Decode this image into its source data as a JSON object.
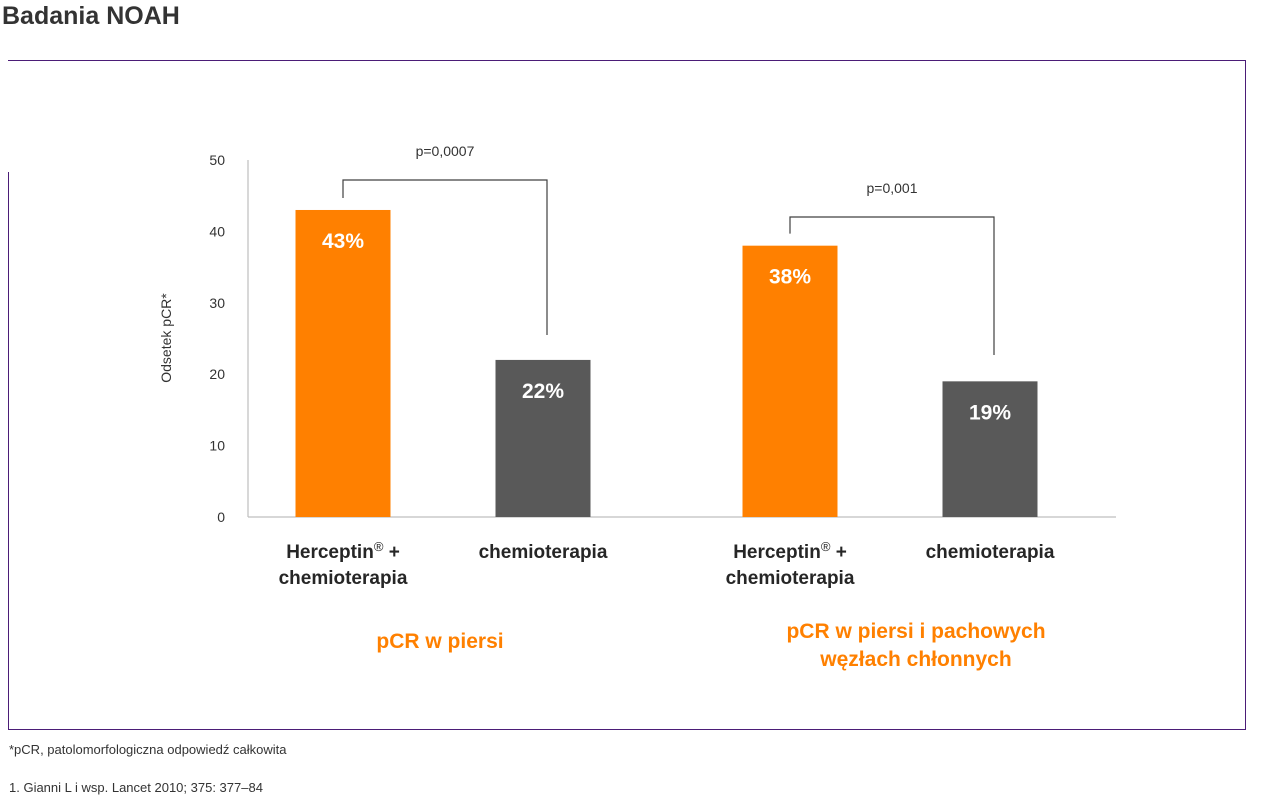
{
  "page": {
    "title": "Badania NOAH",
    "footnote": "*pCR, patolomorfologiczna odpowiedź całkowita",
    "reference": "1. Gianni L i wsp. Lancet 2010; 375: 377–84"
  },
  "chart_data": {
    "type": "bar",
    "ylabel": "Odsetek pCR*",
    "ylim": [
      0,
      50
    ],
    "yticks": [
      0,
      10,
      20,
      30,
      40,
      50
    ],
    "grid": false,
    "groups": [
      {
        "label": "pCR w piersi",
        "comparison": "p=0,0007",
        "bars": [
          {
            "category_line1": "Herceptin",
            "category_sup": "®",
            "category_suffix": " +",
            "category_line2": "chemioterapia",
            "value": 43,
            "value_label": "43%",
            "color": "#ff8000"
          },
          {
            "category_line1": "chemioterapia",
            "category_sup": "",
            "category_suffix": "",
            "category_line2": "",
            "value": 22,
            "value_label": "22%",
            "color": "#595959"
          }
        ]
      },
      {
        "label_line1": "pCR w piersi i pachowych",
        "label_line2": "węzłach chłonnych",
        "comparison": "p=0,001",
        "bars": [
          {
            "category_line1": "Herceptin",
            "category_sup": "®",
            "category_suffix": " +",
            "category_line2": "chemioterapia",
            "value": 38,
            "value_label": "38%",
            "color": "#ff8000"
          },
          {
            "category_line1": "chemioterapia",
            "category_sup": "",
            "category_suffix": "",
            "category_line2": "",
            "value": 19,
            "value_label": "19%",
            "color": "#595959"
          }
        ]
      }
    ],
    "colors": {
      "accent": "#ff8000",
      "comparator": "#595959",
      "frame": "#4b1d77"
    }
  }
}
